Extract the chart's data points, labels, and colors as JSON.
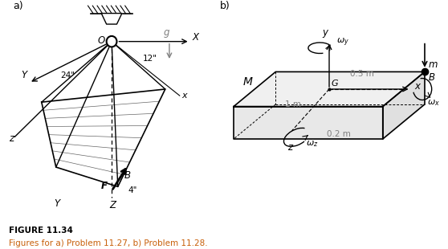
{
  "fig_width": 5.58,
  "fig_height": 3.1,
  "dpi": 100,
  "background": "#ffffff",
  "text_color": "#000000",
  "orange_color": "#c8600a",
  "title": "FIGURE 11.34",
  "subtitle": "Figures for a) Problem 11.27, b) Problem 11.28.",
  "panel_a_label": "a)",
  "panel_b_label": "b)"
}
